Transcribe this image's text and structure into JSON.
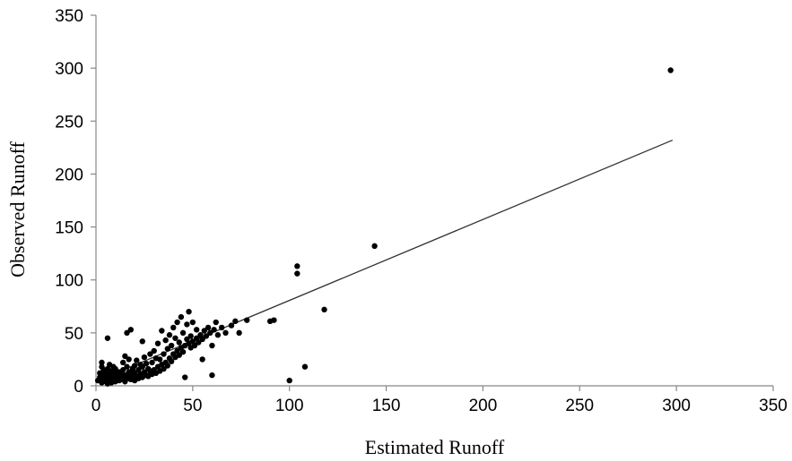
{
  "chart_data": {
    "type": "scatter",
    "title": "",
    "xlabel": "Estimated Runoff",
    "ylabel": "Observed Runoff",
    "xlim": [
      0,
      350
    ],
    "ylim": [
      0,
      350
    ],
    "x_ticks": [
      0,
      50,
      100,
      150,
      200,
      250,
      300,
      350
    ],
    "y_ticks": [
      0,
      50,
      100,
      150,
      200,
      250,
      300,
      350
    ],
    "x_tick_labels": [
      "0",
      "50",
      "100",
      "150",
      "200",
      "250",
      "300",
      "350"
    ],
    "y_tick_labels": [
      "0",
      "50",
      "100",
      "150",
      "200",
      "250",
      "300",
      "350"
    ],
    "grid": false,
    "legend": "none",
    "colors": {
      "points": "#000000",
      "trendline": "#333333",
      "axis": "#888888"
    },
    "series": [
      {
        "points": [
          [
            1,
            5
          ],
          [
            2,
            8
          ],
          [
            2,
            12
          ],
          [
            3,
            3
          ],
          [
            3,
            18
          ],
          [
            3,
            22
          ],
          [
            4,
            6
          ],
          [
            4,
            10
          ],
          [
            4,
            15
          ],
          [
            5,
            4
          ],
          [
            5,
            9
          ],
          [
            5,
            13
          ],
          [
            6,
            2
          ],
          [
            6,
            7
          ],
          [
            6,
            16
          ],
          [
            6,
            45
          ],
          [
            7,
            5
          ],
          [
            7,
            11
          ],
          [
            7,
            20
          ],
          [
            8,
            3
          ],
          [
            8,
            8
          ],
          [
            8,
            14
          ],
          [
            9,
            6
          ],
          [
            9,
            10
          ],
          [
            9,
            18
          ],
          [
            10,
            4
          ],
          [
            10,
            12
          ],
          [
            10,
            16
          ],
          [
            11,
            7
          ],
          [
            11,
            9
          ],
          [
            12,
            5
          ],
          [
            12,
            13
          ],
          [
            13,
            8
          ],
          [
            13,
            11
          ],
          [
            14,
            6
          ],
          [
            14,
            15
          ],
          [
            14,
            22
          ],
          [
            15,
            4
          ],
          [
            15,
            10
          ],
          [
            15,
            28
          ],
          [
            16,
            9
          ],
          [
            16,
            18
          ],
          [
            16,
            50
          ],
          [
            17,
            7
          ],
          [
            17,
            13
          ],
          [
            17,
            25
          ],
          [
            18,
            6
          ],
          [
            18,
            11
          ],
          [
            18,
            53
          ],
          [
            19,
            8
          ],
          [
            19,
            16
          ],
          [
            20,
            5
          ],
          [
            20,
            12
          ],
          [
            20,
            19
          ],
          [
            21,
            9
          ],
          [
            21,
            24
          ],
          [
            22,
            7
          ],
          [
            22,
            15
          ],
          [
            23,
            11
          ],
          [
            23,
            20
          ],
          [
            24,
            8
          ],
          [
            24,
            18
          ],
          [
            24,
            42
          ],
          [
            25,
            13
          ],
          [
            25,
            27
          ],
          [
            26,
            10
          ],
          [
            26,
            21
          ],
          [
            27,
            9
          ],
          [
            27,
            16
          ],
          [
            28,
            14
          ],
          [
            28,
            30
          ],
          [
            29,
            11
          ],
          [
            29,
            22
          ],
          [
            30,
            15
          ],
          [
            30,
            33
          ],
          [
            31,
            12
          ],
          [
            31,
            26
          ],
          [
            32,
            18
          ],
          [
            32,
            40
          ],
          [
            33,
            14
          ],
          [
            33,
            25
          ],
          [
            34,
            20
          ],
          [
            34,
            52
          ],
          [
            35,
            16
          ],
          [
            35,
            30
          ],
          [
            36,
            22
          ],
          [
            36,
            43
          ],
          [
            37,
            19
          ],
          [
            37,
            35
          ],
          [
            38,
            26
          ],
          [
            38,
            48
          ],
          [
            39,
            23
          ],
          [
            39,
            38
          ],
          [
            40,
            30
          ],
          [
            40,
            55
          ],
          [
            41,
            27
          ],
          [
            41,
            45
          ],
          [
            42,
            33
          ],
          [
            42,
            60
          ],
          [
            43,
            29
          ],
          [
            43,
            41
          ],
          [
            44,
            36
          ],
          [
            44,
            65
          ],
          [
            45,
            32
          ],
          [
            45,
            50
          ],
          [
            46,
            8
          ],
          [
            46,
            38
          ],
          [
            47,
            44
          ],
          [
            47,
            58
          ],
          [
            48,
            40
          ],
          [
            48,
            70
          ],
          [
            49,
            36
          ],
          [
            49,
            47
          ],
          [
            50,
            42
          ],
          [
            50,
            60
          ],
          [
            51,
            38
          ],
          [
            52,
            45
          ],
          [
            52,
            53
          ],
          [
            53,
            41
          ],
          [
            54,
            48
          ],
          [
            55,
            44
          ],
          [
            55,
            25
          ],
          [
            56,
            52
          ],
          [
            57,
            47
          ],
          [
            58,
            55
          ],
          [
            59,
            50
          ],
          [
            60,
            10
          ],
          [
            60,
            38
          ],
          [
            61,
            53
          ],
          [
            62,
            60
          ],
          [
            63,
            48
          ],
          [
            65,
            55
          ],
          [
            67,
            50
          ],
          [
            70,
            57
          ],
          [
            72,
            61
          ],
          [
            74,
            50
          ],
          [
            78,
            62
          ],
          [
            90,
            61
          ],
          [
            92,
            62
          ],
          [
            100,
            5
          ],
          [
            104,
            106
          ],
          [
            104,
            113
          ],
          [
            108,
            18
          ],
          [
            118,
            72
          ],
          [
            144,
            132
          ],
          [
            297,
            298
          ]
        ]
      }
    ],
    "trendline": {
      "type": "linear",
      "x": [
        1,
        298
      ],
      "y": [
        5,
        232
      ]
    }
  }
}
